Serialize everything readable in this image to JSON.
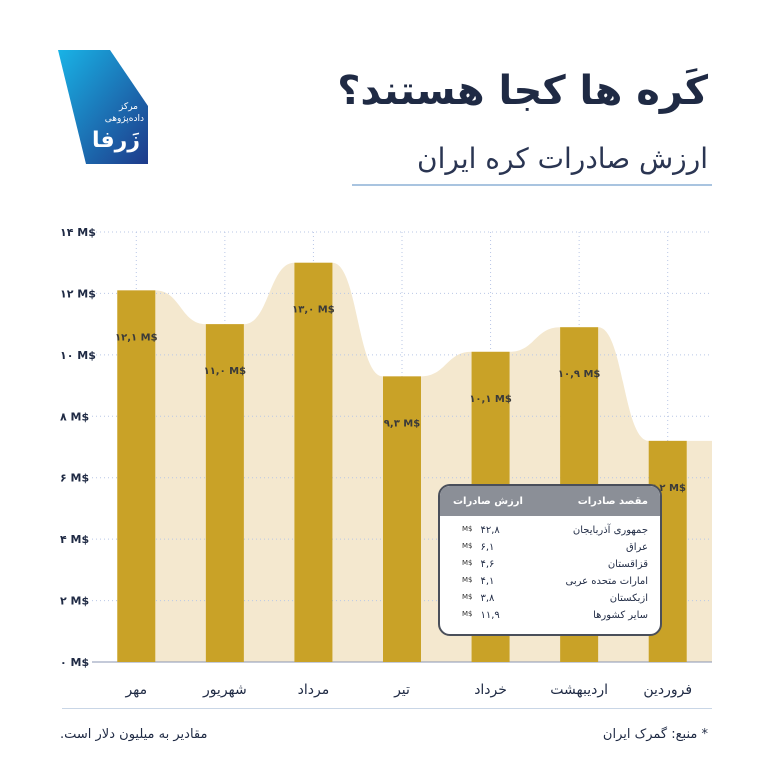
{
  "header": {
    "title": "کَره ها کجا هستند؟",
    "subtitle": "ارزش صادرات کره ایران"
  },
  "logo": {
    "line1": "مرکز",
    "line2": "داده‌پژوهی",
    "name": "زَرفا",
    "colors": [
      "#19b3e6",
      "#1e3a8a"
    ]
  },
  "chart_data": {
    "type": "bar",
    "categories": [
      "فروردین",
      "اردیبهشت",
      "خرداد",
      "تیر",
      "مرداد",
      "شهریور",
      "مهر"
    ],
    "values": [
      7.2,
      10.9,
      10.1,
      9.3,
      13.0,
      11.0,
      12.1
    ],
    "value_labels": [
      "۷,۲ M$",
      "۱۰,۹ M$",
      "۱۰,۱ M$",
      "۹,۳ M$",
      "۱۳,۰ M$",
      "۱۱,۰ M$",
      "۱۲,۱ M$"
    ],
    "ylim": [
      0,
      14
    ],
    "y_ticks": [
      0,
      2,
      4,
      6,
      8,
      10,
      12,
      14
    ],
    "y_tick_labels": [
      "۰ M$",
      "۲ M$",
      "۴ M$",
      "۶ M$",
      "۸ M$",
      "۱۰ M$",
      "۱۲ M$",
      "۱۴ M$"
    ],
    "grid": true,
    "bar_color": "#c9a227",
    "area_color": "#f4e8cf",
    "grid_color": "#b9c7e6"
  },
  "legend_table": {
    "header_country": "مقصد صادرات",
    "header_value": "ارزش صادرات",
    "unit": "M$",
    "rows": [
      {
        "country": "جمهوری آذربایجان",
        "value": "۴۲,۸"
      },
      {
        "country": "عراق",
        "value": "۶,۱"
      },
      {
        "country": "قزاقستان",
        "value": "۴,۶"
      },
      {
        "country": "امارات متحده عربی",
        "value": "۴,۱"
      },
      {
        "country": "ازبکستان",
        "value": "۳,۸"
      },
      {
        "country": "سایر کشورها",
        "value": "۱۱,۹"
      }
    ]
  },
  "footer": {
    "source": "* منبع: گمرک ایران",
    "note": "مقادیر به میلیون دلار است."
  }
}
